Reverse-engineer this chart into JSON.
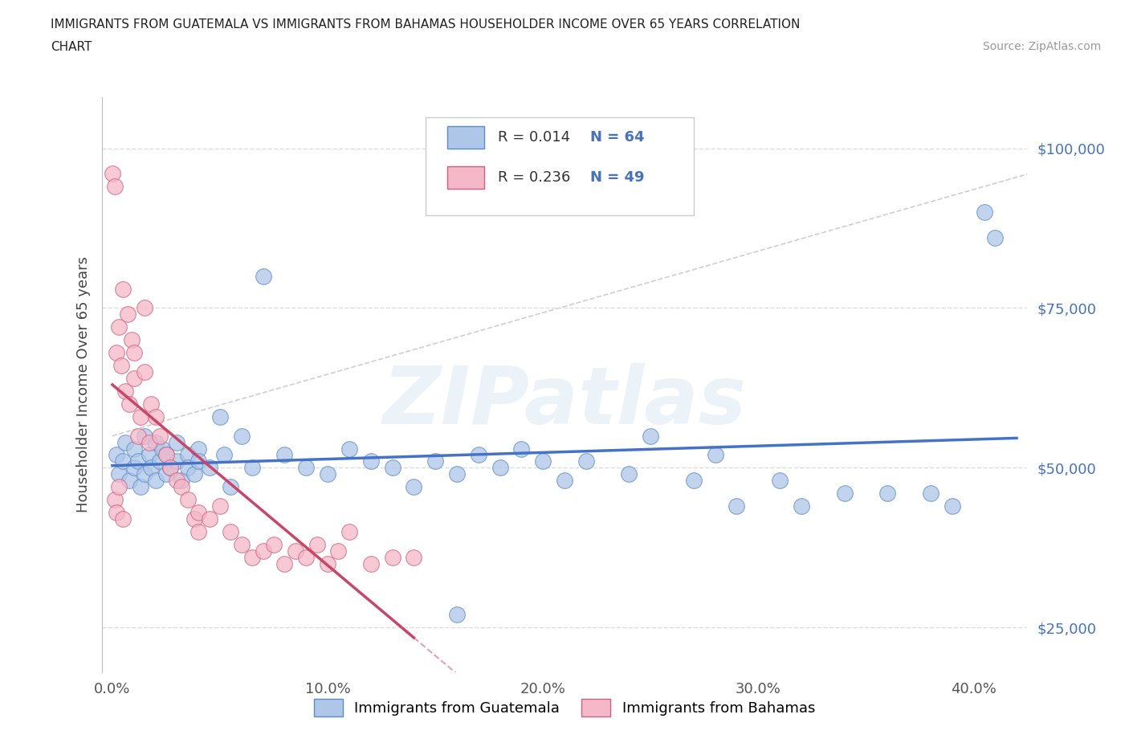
{
  "title_line1": "IMMIGRANTS FROM GUATEMALA VS IMMIGRANTS FROM BAHAMAS HOUSEHOLDER INCOME OVER 65 YEARS CORRELATION",
  "title_line2": "CHART",
  "source": "Source: ZipAtlas.com",
  "ylabel": "Householder Income Over 65 years",
  "watermark": "ZIPatlas",
  "legend_labels": [
    "Immigrants from Guatemala",
    "Immigrants from Bahamas"
  ],
  "R_guatemala": 0.014,
  "N_guatemala": 64,
  "R_bahamas": 0.236,
  "N_bahamas": 49,
  "color_guatemala": "#aec6e8",
  "color_bahamas": "#f4b8c8",
  "edge_color_guatemala": "#5b8cc8",
  "edge_color_bahamas": "#d06080",
  "line_color_guatemala": "#4472c4",
  "line_color_bahamas": "#cc4466",
  "dash_color_guatemala": "#cccccc",
  "dash_color_bahamas": "#e8a0b0",
  "xlim": [
    -0.005,
    0.425
  ],
  "ylim": [
    18000,
    108000
  ],
  "yticks": [
    25000,
    50000,
    75000,
    100000
  ],
  "ytick_labels": [
    "$25,000",
    "$50,000",
    "$75,000",
    "$100,000"
  ],
  "xticks": [
    0.0,
    0.1,
    0.2,
    0.3,
    0.4
  ],
  "xtick_labels": [
    "0.0%",
    "10.0%",
    "20.0%",
    "30.0%",
    "40.0%"
  ],
  "guat_x": [
    0.002,
    0.003,
    0.005,
    0.006,
    0.008,
    0.01,
    0.01,
    0.012,
    0.013,
    0.015,
    0.015,
    0.017,
    0.018,
    0.02,
    0.02,
    0.022,
    0.023,
    0.025,
    0.025,
    0.027,
    0.03,
    0.03,
    0.032,
    0.035,
    0.035,
    0.038,
    0.04,
    0.04,
    0.045,
    0.05,
    0.052,
    0.055,
    0.06,
    0.065,
    0.07,
    0.08,
    0.09,
    0.1,
    0.11,
    0.12,
    0.13,
    0.14,
    0.15,
    0.16,
    0.17,
    0.18,
    0.19,
    0.2,
    0.21,
    0.22,
    0.24,
    0.25,
    0.27,
    0.28,
    0.29,
    0.31,
    0.32,
    0.34,
    0.36,
    0.38,
    0.39,
    0.405,
    0.41,
    0.16
  ],
  "guat_y": [
    52000,
    49000,
    51000,
    54000,
    48000,
    50000,
    53000,
    51000,
    47000,
    55000,
    49000,
    52000,
    50000,
    48000,
    54000,
    51000,
    53000,
    49000,
    52000,
    50000,
    51000,
    54000,
    48000,
    52000,
    50000,
    49000,
    53000,
    51000,
    50000,
    58000,
    52000,
    47000,
    55000,
    50000,
    80000,
    52000,
    50000,
    49000,
    53000,
    51000,
    50000,
    47000,
    51000,
    49000,
    52000,
    50000,
    53000,
    51000,
    48000,
    51000,
    49000,
    55000,
    48000,
    52000,
    44000,
    48000,
    44000,
    46000,
    46000,
    46000,
    44000,
    90000,
    86000,
    27000
  ],
  "bah_x": [
    0.0,
    0.001,
    0.002,
    0.003,
    0.004,
    0.005,
    0.006,
    0.007,
    0.008,
    0.009,
    0.01,
    0.01,
    0.012,
    0.013,
    0.015,
    0.015,
    0.017,
    0.018,
    0.02,
    0.022,
    0.025,
    0.027,
    0.03,
    0.032,
    0.035,
    0.038,
    0.04,
    0.04,
    0.045,
    0.05,
    0.055,
    0.06,
    0.065,
    0.07,
    0.075,
    0.08,
    0.085,
    0.09,
    0.095,
    0.1,
    0.105,
    0.11,
    0.12,
    0.13,
    0.14,
    0.001,
    0.002,
    0.003,
    0.005
  ],
  "bah_y": [
    96000,
    94000,
    68000,
    72000,
    66000,
    78000,
    62000,
    74000,
    60000,
    70000,
    68000,
    64000,
    55000,
    58000,
    65000,
    75000,
    54000,
    60000,
    58000,
    55000,
    52000,
    50000,
    48000,
    47000,
    45000,
    42000,
    43000,
    40000,
    42000,
    44000,
    40000,
    38000,
    36000,
    37000,
    38000,
    35000,
    37000,
    36000,
    38000,
    35000,
    37000,
    40000,
    35000,
    36000,
    36000,
    45000,
    43000,
    47000,
    42000
  ]
}
